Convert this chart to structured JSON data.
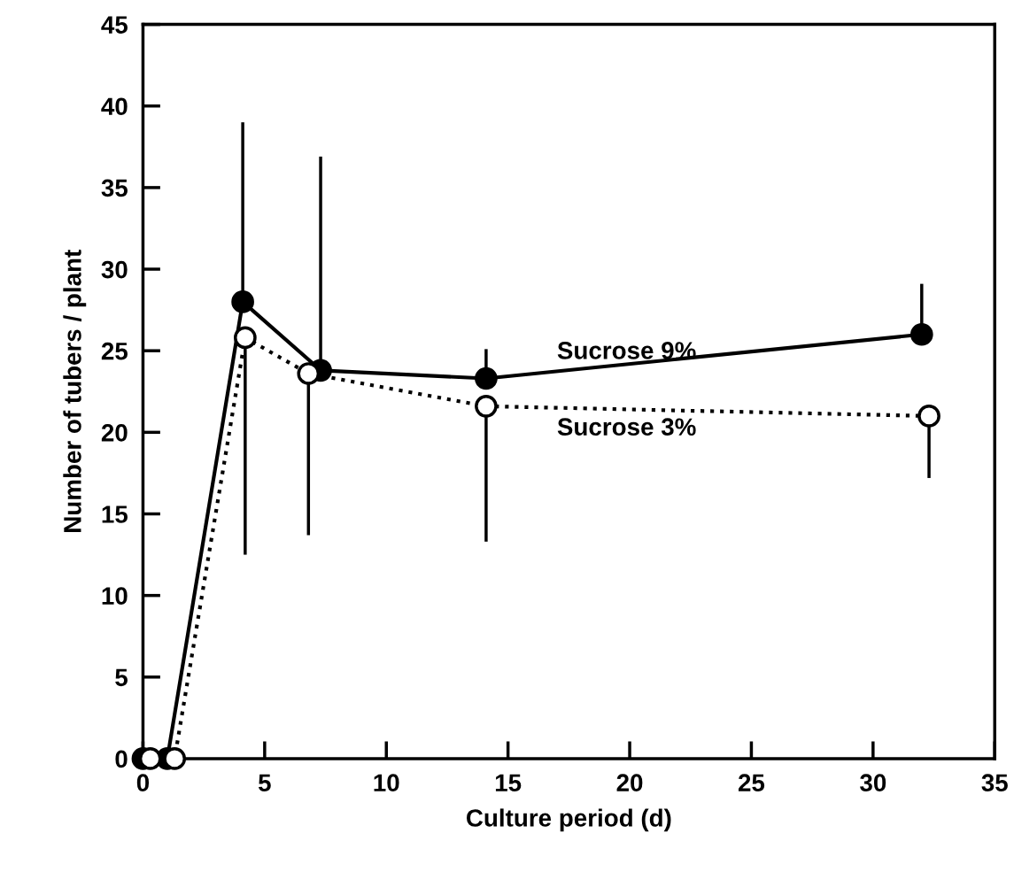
{
  "chart_data": {
    "type": "line",
    "xlabel": "Culture period (d)",
    "ylabel": "Number of tubers / plant",
    "xlim": [
      0,
      35
    ],
    "xticks": [
      0,
      5,
      10,
      15,
      20,
      25,
      30,
      35
    ],
    "ylim": [
      0,
      45
    ],
    "yticks": [
      0,
      5,
      10,
      15,
      20,
      25,
      30,
      35,
      40,
      45
    ],
    "grid": false,
    "legend": false,
    "series": [
      {
        "color": "#000000",
        "line_style": "solid",
        "marker": "circle",
        "x": [
          0,
          1.0,
          4.1,
          7.3,
          14.1,
          32.0
        ],
        "values": [
          0,
          0,
          28.0,
          23.8,
          23.3,
          26.0
        ],
        "errors": [
          null,
          null,
          [
            28.0,
            39.0
          ],
          [
            23.8,
            36.9
          ],
          [
            23.3,
            25.1
          ],
          [
            26.0,
            29.1
          ]
        ]
      },
      {
        "color": "#000000",
        "line_style": "dotted",
        "marker": "circle",
        "x": [
          0.3,
          1.3,
          4.2,
          6.8,
          14.1,
          32.3
        ],
        "values": [
          0,
          0,
          25.8,
          23.6,
          21.6,
          21.0
        ],
        "errors": [
          null,
          null,
          [
            12.5,
            25.8
          ],
          [
            13.7,
            23.6
          ],
          [
            13.3,
            21.6
          ],
          [
            17.2,
            21.0
          ]
        ]
      }
    ],
    "annotations": [
      "Sucrose 9%",
      "Sucrose 3%"
    ]
  }
}
